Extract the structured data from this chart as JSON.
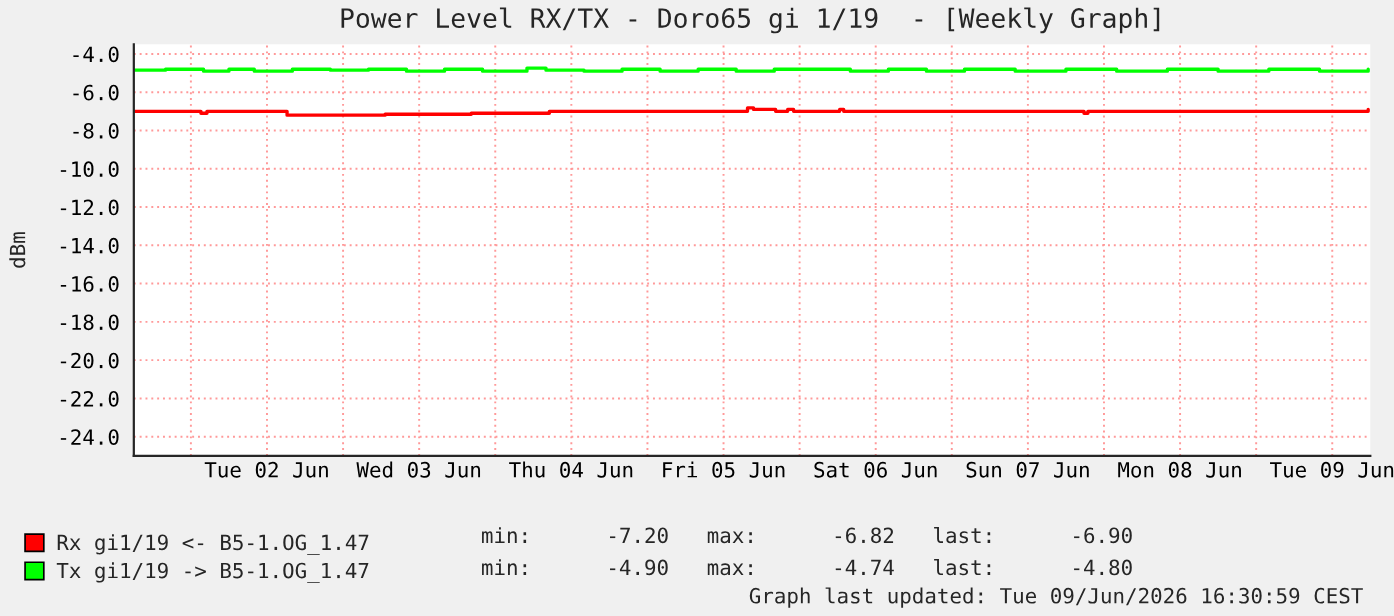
{
  "chart_data": {
    "type": "step",
    "title": "Power Level RX/TX - Doro65 gi 1/19  - [Weekly Graph]",
    "ylabel": "dBm",
    "xlim": [
      "2026-06-01T15:00",
      "2026-06-09T18:00"
    ],
    "xticks": [
      {
        "value": "2026-06-02T00:00",
        "label": null
      },
      {
        "value": "2026-06-02T12:00",
        "label": "Tue 02 Jun"
      },
      {
        "value": "2026-06-03T00:00",
        "label": null
      },
      {
        "value": "2026-06-03T12:00",
        "label": "Wed 03 Jun"
      },
      {
        "value": "2026-06-04T00:00",
        "label": null
      },
      {
        "value": "2026-06-04T12:00",
        "label": "Thu 04 Jun"
      },
      {
        "value": "2026-06-05T00:00",
        "label": null
      },
      {
        "value": "2026-06-05T12:00",
        "label": "Fri 05 Jun"
      },
      {
        "value": "2026-06-06T00:00",
        "label": null
      },
      {
        "value": "2026-06-06T12:00",
        "label": "Sat 06 Jun"
      },
      {
        "value": "2026-06-07T00:00",
        "label": null
      },
      {
        "value": "2026-06-07T12:00",
        "label": "Sun 07 Jun"
      },
      {
        "value": "2026-06-08T00:00",
        "label": null
      },
      {
        "value": "2026-06-08T12:00",
        "label": "Mon 08 Jun"
      },
      {
        "value": "2026-06-09T00:00",
        "label": null
      },
      {
        "value": "2026-06-09T12:00",
        "label": "Tue 09 Jun"
      }
    ],
    "ylim": [
      -25,
      -3.5
    ],
    "yticks": [
      {
        "value": -4,
        "label": "-4.0"
      },
      {
        "value": -6,
        "label": "-6.0"
      },
      {
        "value": -8,
        "label": "-8.0"
      },
      {
        "value": -10,
        "label": "-10.0"
      },
      {
        "value": -12,
        "label": "-12.0"
      },
      {
        "value": -14,
        "label": "-14.0"
      },
      {
        "value": -16,
        "label": "-16.0"
      },
      {
        "value": -18,
        "label": "-18.0"
      },
      {
        "value": -20,
        "label": "-20.0"
      },
      {
        "value": -22,
        "label": "-22.0"
      },
      {
        "value": -24,
        "label": "-24.0"
      }
    ],
    "grid": true,
    "legend": "bottom",
    "marker": "none",
    "line_style": "solid",
    "series": [
      {
        "name": "Rx gi1/19 <- B5-1.OG_1.47",
        "color": "#ff0000",
        "x": [
          "2026-06-01T15:10",
          "2026-06-02T00:57",
          "2026-06-02T01:35",
          "2026-06-02T02:32",
          "2026-06-02T14:32",
          "2026-06-02T15:10",
          "2026-06-03T06:00",
          "2026-06-03T06:38",
          "2026-06-03T19:35",
          "2026-06-03T20:13",
          "2026-06-04T07:54",
          "2026-06-04T08:32",
          "2026-06-05T15:28",
          "2026-06-05T15:47",
          "2026-06-05T16:44",
          "2026-06-05T19:35",
          "2026-06-05T20:13",
          "2026-06-05T22:07",
          "2026-06-05T23:03",
          "2026-06-06T06:00",
          "2026-06-06T06:19",
          "2026-06-06T06:57",
          "2026-06-07T20:32",
          "2026-06-07T20:51",
          "2026-06-07T21:28",
          "2026-06-09T17:40"
        ],
        "values": [
          -7.0,
          -7.0,
          -7.1,
          -7.0,
          -7.0,
          -7.2,
          -7.2,
          -7.15,
          -7.15,
          -7.1,
          -7.1,
          -7.0,
          -7.0,
          -6.82,
          -6.9,
          -6.9,
          -7.0,
          -6.9,
          -7.0,
          -7.0,
          -6.9,
          -7.0,
          -7.0,
          -7.1,
          -7.0,
          -6.9
        ]
      },
      {
        "name": "Tx gi1/19 -> B5-1.OG_1.47",
        "color": "#00ff00",
        "x": [
          "2026-06-01T15:10",
          "2026-06-01T20:00",
          "2026-06-02T02:00",
          "2026-06-02T06:00",
          "2026-06-02T10:00",
          "2026-06-02T16:00",
          "2026-06-02T22:00",
          "2026-06-03T04:00",
          "2026-06-03T10:00",
          "2026-06-03T16:00",
          "2026-06-03T22:00",
          "2026-06-04T05:00",
          "2026-06-04T08:00",
          "2026-06-04T14:00",
          "2026-06-04T20:00",
          "2026-06-05T02:00",
          "2026-06-05T08:00",
          "2026-06-05T14:00",
          "2026-06-05T20:00",
          "2026-06-06T02:00",
          "2026-06-06T08:00",
          "2026-06-06T14:00",
          "2026-06-06T20:00",
          "2026-06-07T02:00",
          "2026-06-07T10:00",
          "2026-06-07T18:00",
          "2026-06-08T02:00",
          "2026-06-08T10:00",
          "2026-06-08T18:00",
          "2026-06-09T02:00",
          "2026-06-09T10:00",
          "2026-06-09T17:40"
        ],
        "values": [
          -4.85,
          -4.8,
          -4.9,
          -4.8,
          -4.9,
          -4.8,
          -4.85,
          -4.8,
          -4.9,
          -4.8,
          -4.9,
          -4.74,
          -4.85,
          -4.9,
          -4.8,
          -4.9,
          -4.8,
          -4.9,
          -4.8,
          -4.8,
          -4.9,
          -4.8,
          -4.9,
          -4.8,
          -4.9,
          -4.8,
          -4.9,
          -4.8,
          -4.9,
          -4.8,
          -4.9,
          -4.8
        ]
      }
    ],
    "annotations": [
      "min:      -7.20   max:      -6.82   last:      -6.90",
      "min:      -4.90   max:      -4.74   last:      -4.80",
      "Graph last updated: Tue 09/Jun/2026 16:30:59 CEST"
    ]
  }
}
